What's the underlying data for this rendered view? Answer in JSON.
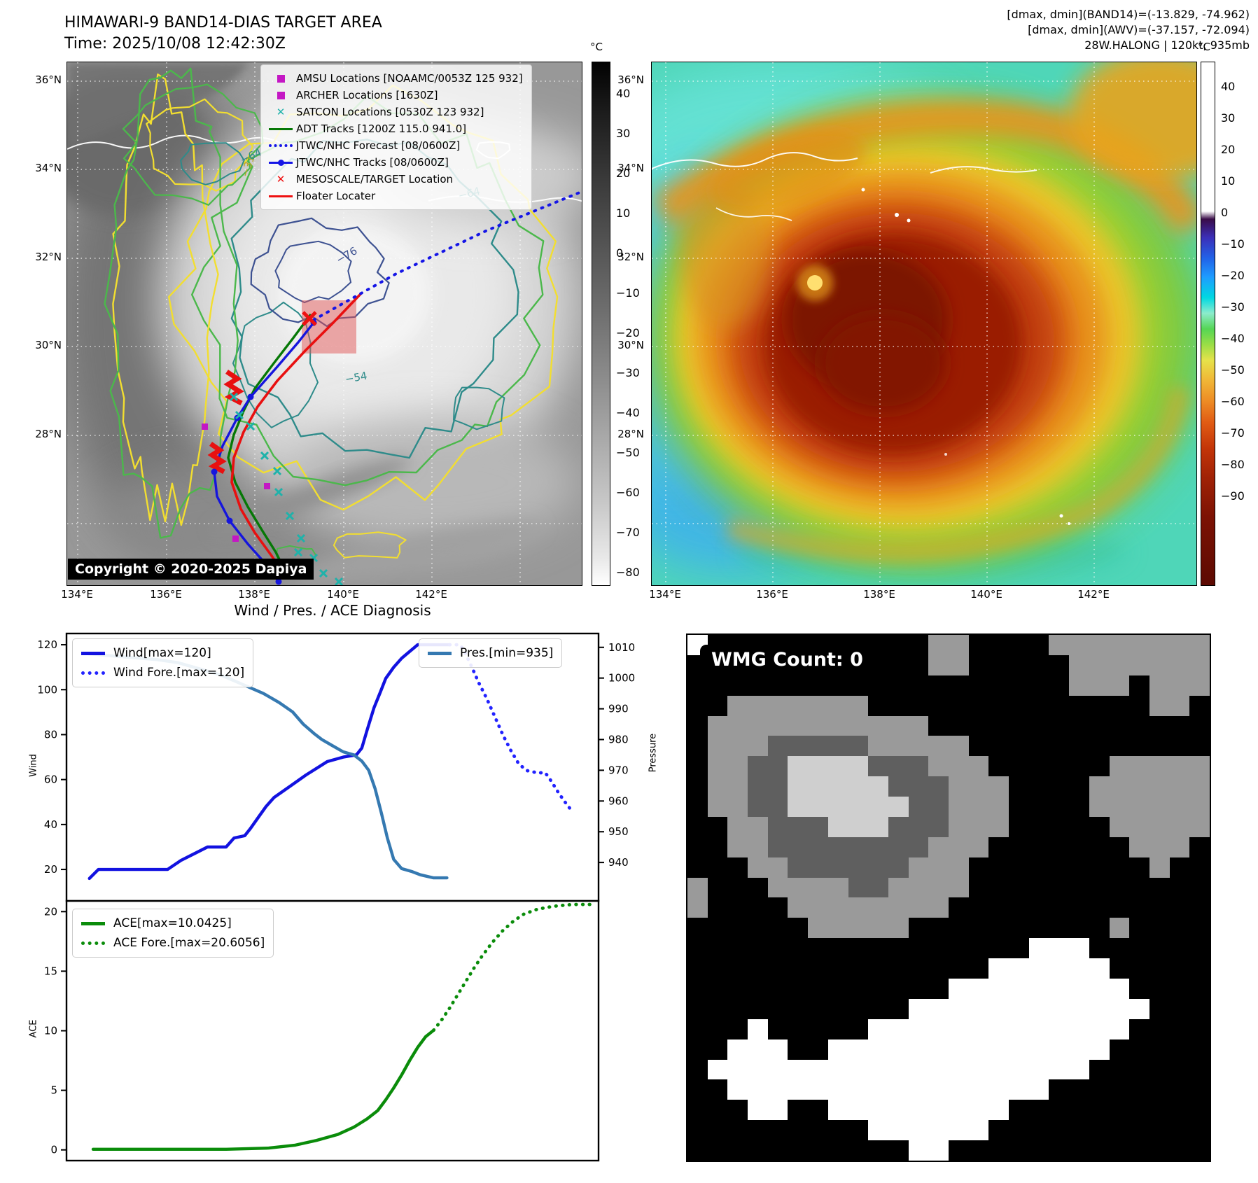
{
  "header": {
    "title": "HIMAWARI-9 BAND14-DIAS TARGET AREA",
    "time": "Time: 2025/10/08 12:42:30Z",
    "right_lines": [
      "[dmax, dmin](BAND14)=(-13.829, -74.962)",
      "[dmax, dmin](AWV)=(-37.157, -72.094)",
      "28W.HALONG | 120kt, 935mb"
    ]
  },
  "left_map": {
    "legend": [
      {
        "label": "AMSU Locations [NOAAMC/0053Z 125 932]",
        "marker": "square",
        "color": "#c417c4"
      },
      {
        "label": "ARCHER Locations [1630Z]",
        "marker": "square",
        "color": "#c417c4"
      },
      {
        "label": "SATCON Locations [0530Z 123 932]",
        "marker": "x",
        "color": "#1fb2aa"
      },
      {
        "label": "ADT Tracks [1200Z 115.0 941.0]",
        "marker": "line",
        "color": "#067806"
      },
      {
        "label": "JTWC/NHC Forecast [08/0600Z]",
        "marker": "dotted",
        "color": "#1515e6"
      },
      {
        "label": "JTWC/NHC Tracks [08/0600Z]",
        "marker": "line-dot",
        "color": "#1515e6"
      },
      {
        "label": "MESOSCALE/TARGET Location",
        "marker": "x",
        "color": "#ee1111"
      },
      {
        "label": "Floater Locater",
        "marker": "line",
        "color": "#ee1111"
      }
    ],
    "lat_ticks": [
      "36°N",
      "34°N",
      "32°N",
      "30°N",
      "28°N"
    ],
    "lon_ticks": [
      "134°E",
      "136°E",
      "138°E",
      "140°E",
      "142°E"
    ],
    "contour_labels": [
      "−31",
      "−64",
      "−64",
      "−76",
      "−54"
    ],
    "copyright": "Copyright © 2020-2025 Dapiya",
    "colorbar": {
      "unit": "°C",
      "ticks": [
        40,
        30,
        20,
        10,
        0,
        -10,
        -20,
        -30,
        -40,
        -50,
        -60,
        -70,
        -80
      ]
    }
  },
  "right_map": {
    "lat_ticks": [
      "36°N",
      "34°N",
      "32°N",
      "30°N",
      "28°N"
    ],
    "lon_ticks": [
      "134°E",
      "136°E",
      "138°E",
      "140°E",
      "142°E"
    ],
    "colorbar": {
      "unit": "°C",
      "ticks": [
        40,
        30,
        20,
        10,
        0,
        -10,
        -20,
        -30,
        -40,
        -50,
        -60,
        -70,
        -80,
        -90
      ]
    }
  },
  "charts": {
    "title": "Wind / Pres. / ACE Diagnosis",
    "wind_ylabel": "Wind",
    "pressure_ylabel": "Pressure",
    "ace_ylabel": "ACE"
  },
  "chart_data": [
    {
      "type": "line",
      "title": "Wind / Pres. / ACE Diagnosis",
      "ylabel_left": "Wind",
      "ylabel_right": "Pressure",
      "ylim_left": [
        6,
        125
      ],
      "yticks_left": [
        20,
        40,
        60,
        80,
        100,
        120
      ],
      "ylim_right": [
        927.5,
        1014.5
      ],
      "yticks_right": [
        940,
        950,
        960,
        970,
        980,
        990,
        1000,
        1010
      ],
      "series": [
        {
          "name": "Wind[max=120]",
          "axis": "left",
          "style": "solid",
          "color": "#1212e0",
          "points": [
            [
              0.043,
              16
            ],
            [
              0.06,
              20
            ],
            [
              0.19,
              20
            ],
            [
              0.215,
              24
            ],
            [
              0.24,
              27
            ],
            [
              0.265,
              30
            ],
            [
              0.3,
              30
            ],
            [
              0.315,
              34
            ],
            [
              0.335,
              35
            ],
            [
              0.345,
              38
            ],
            [
              0.36,
              43
            ],
            [
              0.375,
              48
            ],
            [
              0.39,
              52
            ],
            [
              0.42,
              57
            ],
            [
              0.45,
              62
            ],
            [
              0.47,
              65
            ],
            [
              0.49,
              68
            ],
            [
              0.52,
              70
            ],
            [
              0.545,
              71
            ],
            [
              0.555,
              74
            ],
            [
              0.565,
              82
            ],
            [
              0.578,
              92
            ],
            [
              0.59,
              99
            ],
            [
              0.6,
              105
            ],
            [
              0.615,
              110
            ],
            [
              0.63,
              114
            ],
            [
              0.645,
              117
            ],
            [
              0.655,
              119
            ],
            [
              0.66,
              120
            ],
            [
              0.72,
              120
            ]
          ]
        },
        {
          "name": "Wind Fore.[max=120]",
          "axis": "left",
          "style": "dotted",
          "color": "#2222ff",
          "points": [
            [
              0.72,
              120
            ],
            [
              0.74,
              120
            ],
            [
              0.75,
              116
            ],
            [
              0.762,
              110
            ],
            [
              0.775,
              103
            ],
            [
              0.79,
              96
            ],
            [
              0.805,
              88
            ],
            [
              0.82,
              80
            ],
            [
              0.835,
              73
            ],
            [
              0.85,
              67
            ],
            [
              0.865,
              64
            ],
            [
              0.885,
              63
            ],
            [
              0.9,
              63
            ],
            [
              0.912,
              59
            ],
            [
              0.925,
              54
            ],
            [
              0.94,
              49
            ],
            [
              0.95,
              46
            ]
          ]
        },
        {
          "name": "Pres.[min=935]",
          "axis": "right",
          "style": "solid",
          "color": "#3579b1",
          "points": [
            [
              0.035,
              1008
            ],
            [
              0.1,
              1007
            ],
            [
              0.17,
              1006
            ],
            [
              0.21,
              1005
            ],
            [
              0.25,
              1003
            ],
            [
              0.29,
              1001
            ],
            [
              0.33,
              998
            ],
            [
              0.37,
              995
            ],
            [
              0.4,
              992
            ],
            [
              0.425,
              989
            ],
            [
              0.445,
              985
            ],
            [
              0.465,
              982
            ],
            [
              0.48,
              980
            ],
            [
              0.5,
              978
            ],
            [
              0.52,
              976
            ],
            [
              0.54,
              975
            ],
            [
              0.555,
              973
            ],
            [
              0.568,
              970
            ],
            [
              0.58,
              964
            ],
            [
              0.592,
              956
            ],
            [
              0.603,
              948
            ],
            [
              0.615,
              941
            ],
            [
              0.63,
              938
            ],
            [
              0.65,
              937
            ],
            [
              0.665,
              936
            ],
            [
              0.69,
              935
            ],
            [
              0.715,
              935
            ]
          ]
        }
      ]
    },
    {
      "type": "line",
      "ylabel_left": "ACE",
      "ylim_left": [
        -0.9,
        20.9
      ],
      "yticks_left": [
        0,
        5,
        10,
        15,
        20
      ],
      "series": [
        {
          "name": "ACE[max=10.0425]",
          "axis": "left",
          "style": "solid",
          "color": "#0a8c0a",
          "points": [
            [
              0.05,
              0.05
            ],
            [
              0.3,
              0.05
            ],
            [
              0.38,
              0.15
            ],
            [
              0.43,
              0.4
            ],
            [
              0.47,
              0.8
            ],
            [
              0.51,
              1.3
            ],
            [
              0.54,
              1.9
            ],
            [
              0.565,
              2.6
            ],
            [
              0.585,
              3.3
            ],
            [
              0.6,
              4.2
            ],
            [
              0.615,
              5.2
            ],
            [
              0.63,
              6.3
            ],
            [
              0.645,
              7.5
            ],
            [
              0.66,
              8.6
            ],
            [
              0.675,
              9.5
            ],
            [
              0.69,
              10.04
            ]
          ]
        },
        {
          "name": "ACE Fore.[max=20.6056]",
          "axis": "left",
          "style": "dotted",
          "color": "#0a8c0a",
          "points": [
            [
              0.69,
              10.04
            ],
            [
              0.705,
              10.9
            ],
            [
              0.72,
              11.9
            ],
            [
              0.735,
              13.0
            ],
            [
              0.75,
              14.1
            ],
            [
              0.765,
              15.2
            ],
            [
              0.78,
              16.2
            ],
            [
              0.8,
              17.4
            ],
            [
              0.82,
              18.4
            ],
            [
              0.84,
              19.2
            ],
            [
              0.86,
              19.8
            ],
            [
              0.885,
              20.2
            ],
            [
              0.915,
              20.45
            ],
            [
              0.95,
              20.6
            ],
            [
              0.985,
              20.6
            ]
          ]
        }
      ]
    }
  ],
  "wmg": {
    "label": "WMG Count: 0",
    "palette": {
      "K": "#000000",
      "G": "#9a9a9a",
      "D": "#5f5f5f",
      "L": "#cfcfcf",
      "W": "#ffffff"
    },
    "rows": [
      "WKKKKKKKKKKKGGKKKKGGGGGGGG",
      "KKKKKKKKKKKKGGKKKKKGGGGGGG",
      "KKKKKKKKKKKKKKKKKKKGGGKGGG",
      "KKGGGGGGGKKKKKKKKKKKKKKGGK",
      "KGGGGGGGGGGGKKKKKKKKKKKKKK",
      "KGGGDDDDDGGGGGKKKKKKKKKKKK",
      "KGGDDLLLLDDDGGGKKKKKKGGGGG",
      "KGGDDLLLLLDDDGGGKKKKGGGGGG",
      "KGGDDLLLLLLDDGGGKKKKGGGGGG",
      "KKGGDDDLLLDDDGGGKKKKKGGGGG",
      "KKGGDDDDDDDDGGGKKKKKKKGGGK",
      "KKKGGDDDDDDGGGKKKKKKKKKGKK",
      "GKKKGGGGDDGGGGKKKKKKKKKKKK",
      "GKKKKGGGGGGGGKKKKKKKKKKKKK",
      "KKKKKKGGGGGKKKKKKKKKKGKKKK",
      "KKKKKKKKKKKKKKKKKWWWKKKKKK",
      "KKKKKKKKKKKKKKKWWWWWWKKKKK",
      "KKKKKKKKKKKKKWWWWWWWWWKKKK",
      "KKKKKKKKKKKWWWWWWWWWWWWKKK",
      "KKKWKKKKKWWWWWWWWWWWWWKKKK",
      "KKWWWKKWWWWWWWWWWWWWWKKKKK",
      "KWWWWWWWWWWWWWWWWWWWKKKKKK",
      "KKWWWWWWWWWWWWWWWWKKKKKKKK",
      "KKKWWKKWWWWWWWWWKKKKKKKKKK",
      "KKKKKKKKKWWWWWWKKKKKKKKKKK",
      "KKKKKKKKKKKWWKKKKKKKKKKKKK"
    ]
  }
}
